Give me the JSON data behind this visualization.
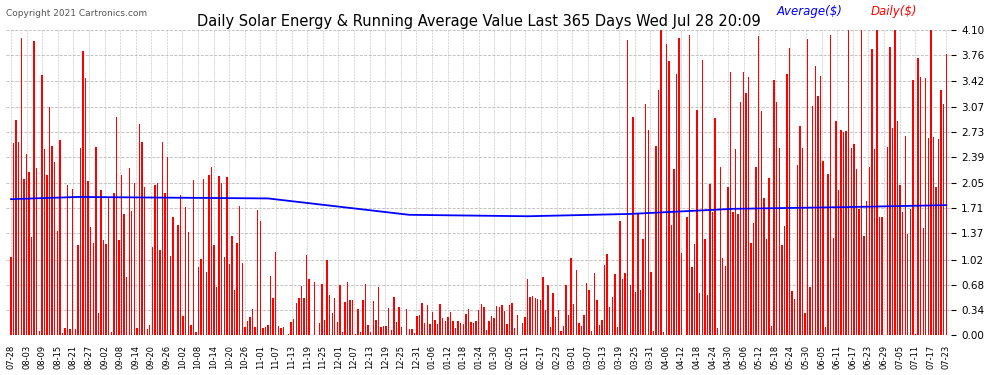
{
  "title": "Daily Solar Energy & Running Average Value Last 365 Days Wed Jul 28 20:09",
  "copyright": "Copyright 2021 Cartronics.com",
  "legend_avg": "Average($)",
  "legend_daily": "Daily($)",
  "ylabel_right_ticks": [
    0.0,
    0.34,
    0.68,
    1.02,
    1.37,
    1.71,
    2.05,
    2.39,
    2.73,
    3.07,
    3.42,
    3.76,
    4.1
  ],
  "ymax": 4.1,
  "ymin": 0.0,
  "bar_color": "#ff0000",
  "avg_line_color": "#0000ff",
  "background_color": "#ffffff",
  "grid_color": "#bbbbbb",
  "title_color": "#000000",
  "n_days": 365,
  "avg_line_points_x": [
    0,
    25,
    60,
    100,
    155,
    200,
    240,
    280,
    320,
    364
  ],
  "avg_line_points_y": [
    1.83,
    1.86,
    1.85,
    1.84,
    1.62,
    1.6,
    1.63,
    1.7,
    1.72,
    1.75
  ],
  "x_tick_labels": [
    "07-28",
    "08-03",
    "08-09",
    "08-15",
    "08-21",
    "08-27",
    "09-02",
    "09-08",
    "09-14",
    "09-20",
    "09-26",
    "10-02",
    "10-08",
    "10-14",
    "10-20",
    "10-26",
    "11-01",
    "11-07",
    "11-13",
    "11-19",
    "11-25",
    "12-01",
    "12-07",
    "12-13",
    "12-19",
    "12-25",
    "12-31",
    "01-06",
    "01-12",
    "01-18",
    "01-24",
    "01-30",
    "02-05",
    "02-11",
    "02-17",
    "02-23",
    "03-01",
    "03-07",
    "03-13",
    "03-19",
    "03-25",
    "03-31",
    "04-06",
    "04-12",
    "04-18",
    "04-24",
    "04-30",
    "05-06",
    "05-12",
    "05-18",
    "05-24",
    "05-30",
    "06-05",
    "06-11",
    "06-17",
    "06-23",
    "06-29",
    "07-05",
    "07-11",
    "07-17",
    "07-23"
  ],
  "figwidth": 9.9,
  "figheight": 3.75,
  "dpi": 100
}
